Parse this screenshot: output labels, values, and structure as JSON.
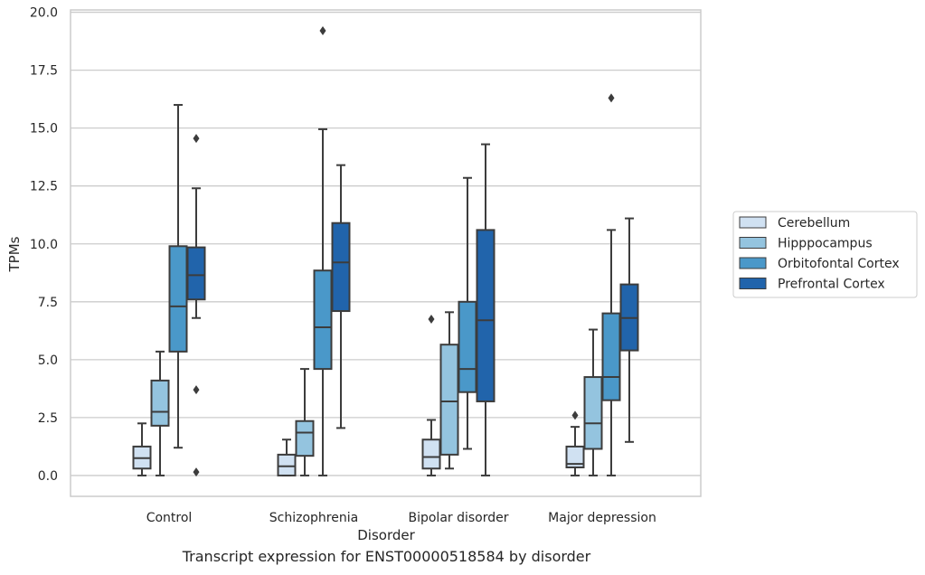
{
  "caption": "Transcript expression for ENST00000518584 by disorder",
  "chart_data": {
    "type": "box",
    "xlabel": "Disorder",
    "ylabel": "TPMs",
    "ylim": [
      -0.9,
      20.1
    ],
    "yticks": [
      0.0,
      2.5,
      5.0,
      7.5,
      10.0,
      12.5,
      15.0,
      17.5,
      20.0
    ],
    "ytick_labels": [
      "0.0",
      "2.5",
      "5.0",
      "7.5",
      "10.0",
      "12.5",
      "15.0",
      "17.5",
      "20.0"
    ],
    "grid": "horizontal",
    "legend_position": "right",
    "categories": [
      "Control",
      "Schizophrenia",
      "Bipolar disorder",
      "Major depression"
    ],
    "series": [
      {
        "name": "Cerebellum",
        "color": "#d0e1f2",
        "boxes": [
          {
            "whislo": 0.0,
            "q1": 0.3,
            "median": 0.75,
            "q3": 1.25,
            "whishi": 2.25,
            "fliers": []
          },
          {
            "whislo": 0.0,
            "q1": 0.0,
            "median": 0.4,
            "q3": 0.9,
            "whishi": 1.55,
            "fliers": []
          },
          {
            "whislo": 0.0,
            "q1": 0.3,
            "median": 0.8,
            "q3": 1.55,
            "whishi": 2.4,
            "fliers": [
              6.75
            ]
          },
          {
            "whislo": 0.0,
            "q1": 0.35,
            "median": 0.5,
            "q3": 1.25,
            "whishi": 2.1,
            "fliers": [
              2.6
            ]
          }
        ]
      },
      {
        "name": "Hipppocampus",
        "color": "#94c4df",
        "boxes": [
          {
            "whislo": 0.0,
            "q1": 2.15,
            "median": 2.75,
            "q3": 4.1,
            "whishi": 5.35,
            "fliers": []
          },
          {
            "whislo": 0.0,
            "q1": 0.85,
            "median": 1.85,
            "q3": 2.35,
            "whishi": 4.6,
            "fliers": []
          },
          {
            "whislo": 0.3,
            "q1": 0.9,
            "median": 3.2,
            "q3": 5.65,
            "whishi": 7.05,
            "fliers": []
          },
          {
            "whislo": 0.0,
            "q1": 1.15,
            "median": 2.25,
            "q3": 4.25,
            "whishi": 6.3,
            "fliers": []
          }
        ]
      },
      {
        "name": "Orbitofontal Cortex",
        "color": "#4a98c9",
        "boxes": [
          {
            "whislo": 1.2,
            "q1": 5.35,
            "median": 7.3,
            "q3": 9.9,
            "whishi": 16.0,
            "fliers": []
          },
          {
            "whislo": 0.0,
            "q1": 4.6,
            "median": 6.4,
            "q3": 8.85,
            "whishi": 14.95,
            "fliers": [
              19.2
            ]
          },
          {
            "whislo": 1.15,
            "q1": 3.6,
            "median": 4.6,
            "q3": 7.5,
            "whishi": 12.85,
            "fliers": []
          },
          {
            "whislo": 0.0,
            "q1": 3.25,
            "median": 4.25,
            "q3": 7.0,
            "whishi": 10.6,
            "fliers": [
              16.3
            ]
          }
        ]
      },
      {
        "name": "Prefrontal Cortex",
        "color": "#2164ab",
        "boxes": [
          {
            "whislo": 6.8,
            "q1": 7.6,
            "median": 8.65,
            "q3": 9.85,
            "whishi": 12.4,
            "fliers": [
              14.55,
              3.7,
              0.15
            ]
          },
          {
            "whislo": 2.05,
            "q1": 7.1,
            "median": 9.2,
            "q3": 10.9,
            "whishi": 13.4,
            "fliers": []
          },
          {
            "whislo": 0.0,
            "q1": 3.2,
            "median": 6.7,
            "q3": 10.6,
            "whishi": 14.3,
            "fliers": []
          },
          {
            "whislo": 1.45,
            "q1": 5.4,
            "median": 6.8,
            "q3": 8.25,
            "whishi": 11.1,
            "fliers": []
          }
        ]
      }
    ]
  }
}
